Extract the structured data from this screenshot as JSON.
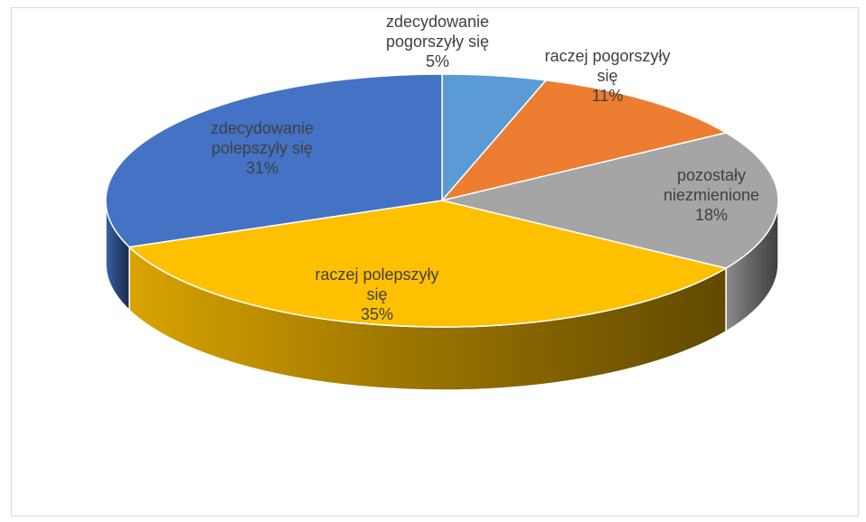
{
  "chart_data": {
    "type": "pie",
    "title": "",
    "slices": [
      {
        "label": [
          "zdecydowanie",
          "pogorszyły się"
        ],
        "value": 5,
        "value_label": "5%",
        "color": "#5b9bd5"
      },
      {
        "label": [
          "raczej pogorszyły",
          "się"
        ],
        "value": 11,
        "value_label": "11%",
        "color": "#ed7d31"
      },
      {
        "label": [
          "pozostały",
          "niezmienione"
        ],
        "value": 18,
        "value_label": "18%",
        "color": "#a5a5a5"
      },
      {
        "label": [
          "raczej polepszyły",
          "się"
        ],
        "value": 35,
        "value_label": "35%",
        "color": "#ffc000"
      },
      {
        "label": [
          "zdecydowanie",
          "polepszyły się"
        ],
        "value": 31,
        "value_label": "31%",
        "color": "#4472c4"
      }
    ],
    "style": "3d",
    "legend": "none"
  }
}
